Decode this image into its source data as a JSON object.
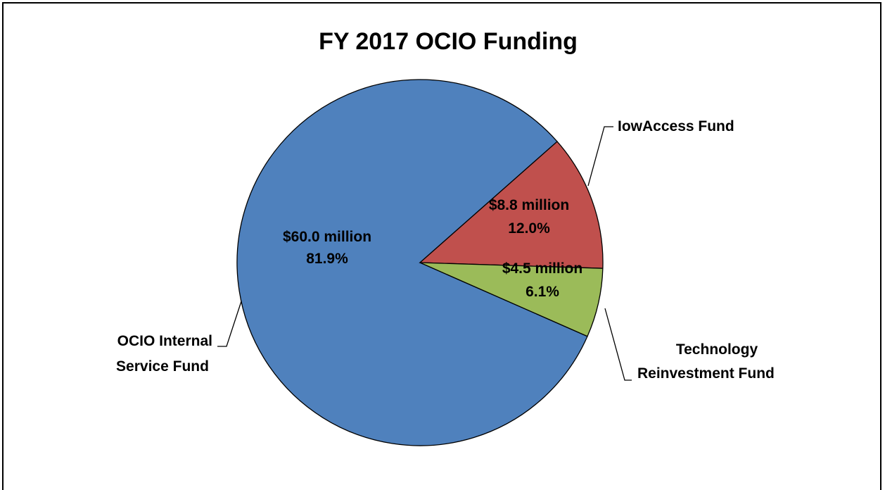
{
  "chart_data": {
    "type": "pie",
    "title": "FY 2017 OCIO Funding",
    "slices": [
      {
        "category": [
          "OCIO Internal",
          "Service Fund"
        ],
        "value": 60.0,
        "value_label": "$60.0 million",
        "percent": 81.9,
        "percent_label": "81.9%",
        "color": "#4f81bd"
      },
      {
        "category": [
          "IowAccess Fund"
        ],
        "value": 8.8,
        "value_label": "$8.8 million",
        "percent": 12.0,
        "percent_label": "12.0%",
        "color": "#c0504d"
      },
      {
        "category": [
          "Technology",
          "Reinvestment Fund"
        ],
        "value": 4.5,
        "value_label": "$4.5 million",
        "percent": 6.1,
        "percent_label": "6.1%",
        "color": "#9bbb59"
      }
    ],
    "units": "million",
    "legend": "none"
  }
}
